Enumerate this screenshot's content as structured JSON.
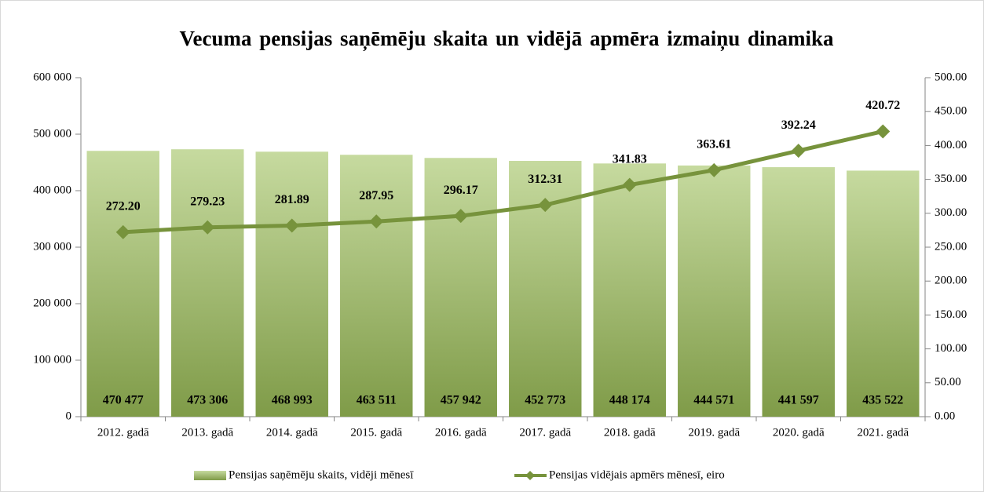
{
  "chart_data": {
    "type": "bar",
    "title": "Vecuma pensijas saņēmēju skaita un vidējā apmēra izmaiņu dinamika",
    "categories": [
      "2012. gadā",
      "2013. gadā",
      "2014. gadā",
      "2015. gadā",
      "2016. gadā",
      "2017. gadā",
      "2018. gadā",
      "2019. gadā",
      "2020. gadā",
      "2021. gadā"
    ],
    "series": [
      {
        "name": "Pensijas saņēmēju skaits, vidēji mēnesī",
        "type": "bar",
        "color": "#9bbb59",
        "values": [
          470477,
          473306,
          468993,
          463511,
          457942,
          452773,
          448174,
          444571,
          441597,
          435522
        ],
        "value_labels": [
          "470 477",
          "473 306",
          "468 993",
          "463 511",
          "457 942",
          "452 773",
          "448 174",
          "444 571",
          "441 597",
          "435 522"
        ]
      },
      {
        "name": "Pensijas vidējais apmērs mēnesī, eiro",
        "type": "line",
        "axis": "y2",
        "color": "#77933c",
        "values": [
          272.2,
          279.23,
          281.89,
          287.95,
          296.17,
          312.31,
          341.83,
          363.61,
          392.24,
          420.72
        ],
        "value_labels": [
          "272.20",
          "279.23",
          "281.89",
          "287.95",
          "296.17",
          "312.31",
          "341.83",
          "363.61",
          "392.24",
          "420.72"
        ]
      }
    ],
    "ylim": [
      0,
      600000
    ],
    "yticks": [
      0,
      {
        "value": 100000,
        "label": "100 000"
      },
      {
        "value": 200000,
        "label": "200 000"
      },
      {
        "value": 300000,
        "label": "300 000"
      },
      {
        "value": 400000,
        "label": "400 000"
      },
      {
        "value": 500000,
        "label": "500 000"
      },
      {
        "value": 600000,
        "label": "600 000"
      }
    ],
    "y2lim": [
      0,
      500
    ],
    "y2ticks": [
      {
        "value": 0,
        "label": "0.00"
      },
      {
        "value": 50,
        "label": "50.00"
      },
      {
        "value": 100,
        "label": "100.00"
      },
      {
        "value": 150,
        "label": "150.00"
      },
      {
        "value": 200,
        "label": "200.00"
      },
      {
        "value": 250,
        "label": "250.00"
      },
      {
        "value": 300,
        "label": "300.00"
      },
      {
        "value": 350,
        "label": "350.00"
      },
      {
        "value": 400,
        "label": "400.00"
      },
      {
        "value": 450,
        "label": "450.00"
      },
      {
        "value": 500,
        "label": "500.00"
      }
    ],
    "legend": "bottom"
  }
}
